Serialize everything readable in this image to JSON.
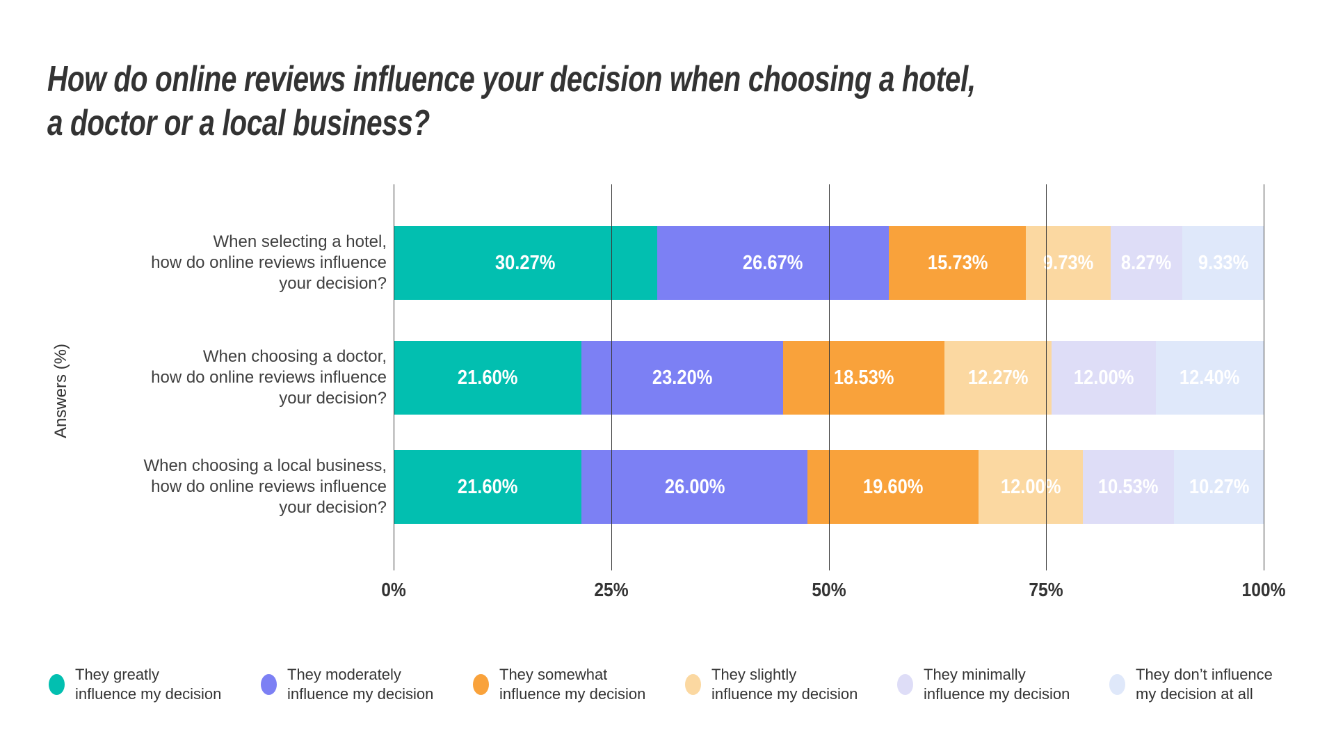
{
  "title": {
    "full": "How do online reviews influence your decision when choosing a hotel, a doctor or a local business?",
    "lines": [
      "How do online reviews influence your decision when choosing a hotel,",
      "a doctor or a local business?"
    ]
  },
  "chart_data": {
    "type": "bar",
    "orientation": "horizontal_stacked",
    "title": "How do online reviews influence your decision when choosing a hotel, a doctor or a local business?",
    "xlabel": "",
    "ylabel": "Answers (%)",
    "xlim": [
      0,
      100
    ],
    "x_ticks": [
      "0%",
      "25%",
      "50%",
      "75%",
      "100%"
    ],
    "grid": "vertical gridlines at each tick, drawn over bars",
    "categories": [
      {
        "label": "When selecting a hotel, how do online reviews influence your decision?",
        "lines": [
          "When selecting a hotel,",
          "how do online reviews influence",
          "your decision?"
        ]
      },
      {
        "label": "When choosing a doctor, how do online reviews influence your decision?",
        "lines": [
          "When choosing a doctor,",
          "how do online reviews influence",
          "your decision?"
        ]
      },
      {
        "label": "When choosing a local business, how do online reviews influence your decision?",
        "lines": [
          "When choosing a local business,",
          "how do online reviews influence",
          "your decision?"
        ]
      }
    ],
    "series": [
      {
        "name": "They greatly influence my decision",
        "color": "#02bfb0",
        "values": [
          30.27,
          21.6,
          21.6
        ],
        "labels": [
          "30.27%",
          "21.60%",
          "21.60%"
        ]
      },
      {
        "name": "They moderately influence my decision",
        "color": "#7c80f4",
        "values": [
          26.67,
          23.2,
          26.0
        ],
        "labels": [
          "26.67%",
          "23.20%",
          "26.00%"
        ]
      },
      {
        "name": "They somewhat influence my decision",
        "color": "#f9a23b",
        "values": [
          15.73,
          18.53,
          19.6
        ],
        "labels": [
          "15.73%",
          "18.53%",
          "19.60%"
        ]
      },
      {
        "name": "They slightly influence my decision",
        "color": "#fbd8a1",
        "values": [
          9.73,
          12.27,
          12.0
        ],
        "labels": [
          "9.73%",
          "12.27%",
          "12.00%"
        ]
      },
      {
        "name": "They minimally influence my decision",
        "color": "#deddf7",
        "values": [
          8.27,
          12.0,
          10.53
        ],
        "labels": [
          "8.27%",
          "12.00%",
          "10.53%"
        ]
      },
      {
        "name": "They don’t influence my decision at all",
        "color": "#dfe8fa",
        "values": [
          9.33,
          12.4,
          10.27
        ],
        "labels": [
          "9.33%",
          "12.40%",
          "10.27%"
        ]
      }
    ],
    "legend": {
      "position": "bottom",
      "items": [
        {
          "color": "#02bfb0",
          "lines": [
            "They greatly",
            "influence my decision"
          ]
        },
        {
          "color": "#7c80f4",
          "lines": [
            "They moderately",
            "influence my decision"
          ]
        },
        {
          "color": "#f9a23b",
          "lines": [
            "They somewhat",
            "influence my decision"
          ]
        },
        {
          "color": "#fbd8a1",
          "lines": [
            "They slightly",
            "influence my decision"
          ]
        },
        {
          "color": "#deddf7",
          "lines": [
            "They minimally",
            "influence my decision"
          ]
        },
        {
          "color": "#dfe8fa",
          "lines": [
            "They don’t influence",
            "my decision at all"
          ]
        }
      ]
    },
    "value_label_style": "white text centered inside each segment",
    "bar_color_text": "#ffffff"
  }
}
